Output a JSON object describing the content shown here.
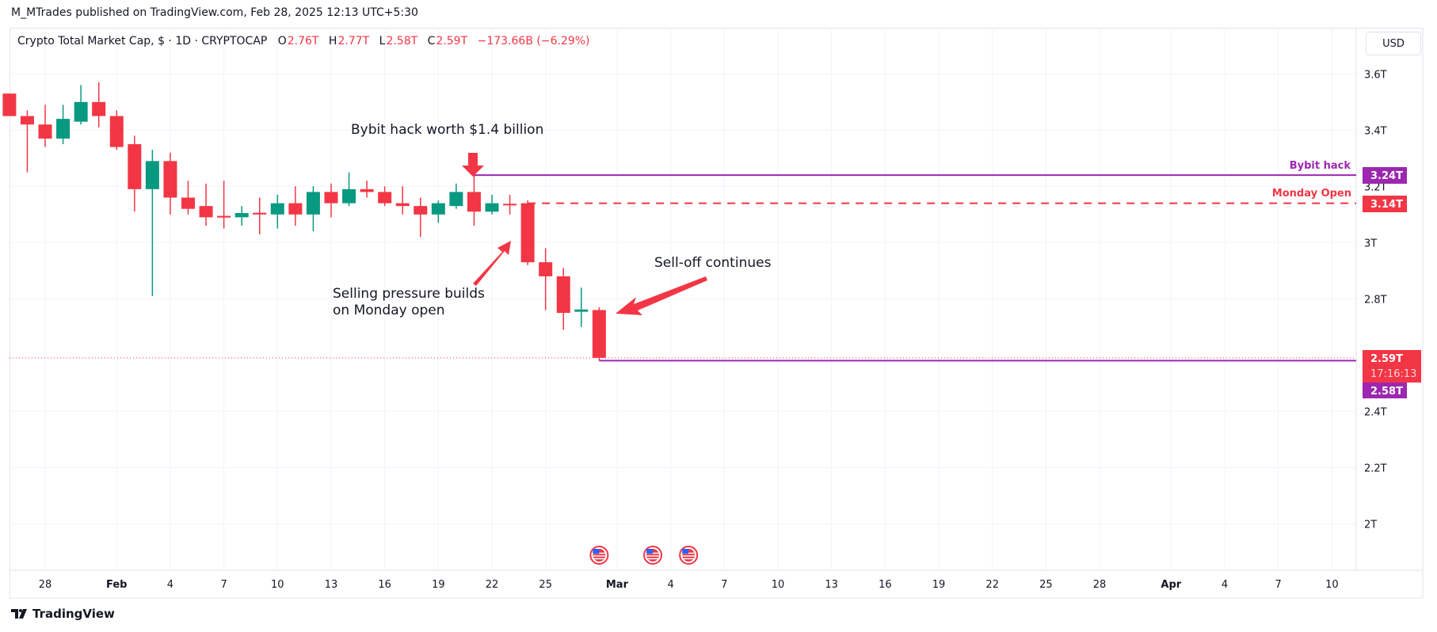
{
  "published": "M_MTrades published on TradingView.com, Feb 28, 2025 12:13 UTC+5:30",
  "legend": {
    "symbol": "Crypto Total Market Cap, $ · 1D · CRYPTOCAP",
    "o_key": "O",
    "o_val": "2.76T",
    "h_key": "H",
    "h_val": "2.77T",
    "l_key": "L",
    "l_val": "2.58T",
    "c_key": "C",
    "c_val": "2.59T",
    "change": "−173.66B (−6.29%)"
  },
  "currency_button": "USD",
  "brand": "TradingView",
  "colors": {
    "up": "#089981",
    "down": "#F23645",
    "purple": "#9C27B0",
    "grid": "#f0f3fa"
  },
  "annotations": {
    "bybit_title": "Bybit hack worth $1.4 billion",
    "selling_line1": "Selling pressure builds",
    "selling_line2": "on Monday open",
    "selloff": "Sell-off continues",
    "bybit_line_label": "Bybit hack",
    "monday_line_label": "Monday Open"
  },
  "price_labels": {
    "bybit": "3.24T",
    "monday": "3.14T",
    "last": "2.59T",
    "countdown": "17:16:13",
    "low": "2.58T"
  },
  "chart_data": {
    "type": "candlestick",
    "interval": "1D",
    "y_ticks": [
      {
        "value": 3.6,
        "label": "3.6T"
      },
      {
        "value": 3.4,
        "label": "3.4T"
      },
      {
        "value": 3.2,
        "label": "3.2T"
      },
      {
        "value": 3.0,
        "label": "3T"
      },
      {
        "value": 2.8,
        "label": "2.8T"
      },
      {
        "value": 2.4,
        "label": "2.4T"
      },
      {
        "value": 2.2,
        "label": "2.2T"
      },
      {
        "value": 2.0,
        "label": "2T"
      }
    ],
    "x_ticks": [
      {
        "date": "2025-01-28",
        "label": "28"
      },
      {
        "date": "2025-02-01",
        "label": "Feb"
      },
      {
        "date": "2025-02-04",
        "label": "4"
      },
      {
        "date": "2025-02-07",
        "label": "7"
      },
      {
        "date": "2025-02-10",
        "label": "10"
      },
      {
        "date": "2025-02-13",
        "label": "13"
      },
      {
        "date": "2025-02-16",
        "label": "16"
      },
      {
        "date": "2025-02-19",
        "label": "19"
      },
      {
        "date": "2025-02-22",
        "label": "22"
      },
      {
        "date": "2025-02-25",
        "label": "25"
      },
      {
        "date": "2025-03-01",
        "label": "Mar"
      },
      {
        "date": "2025-03-04",
        "label": "4"
      },
      {
        "date": "2025-03-07",
        "label": "7"
      },
      {
        "date": "2025-03-10",
        "label": "10"
      },
      {
        "date": "2025-03-13",
        "label": "13"
      },
      {
        "date": "2025-03-16",
        "label": "16"
      },
      {
        "date": "2025-03-19",
        "label": "19"
      },
      {
        "date": "2025-03-22",
        "label": "22"
      },
      {
        "date": "2025-03-25",
        "label": "25"
      },
      {
        "date": "2025-03-28",
        "label": "28"
      },
      {
        "date": "2025-04-01",
        "label": "Apr"
      },
      {
        "date": "2025-04-04",
        "label": "4"
      },
      {
        "date": "2025-04-07",
        "label": "7"
      },
      {
        "date": "2025-04-10",
        "label": "10"
      }
    ],
    "events": [
      "2025-02-28",
      "2025-03-03",
      "2025-03-05"
    ],
    "horizontal_lines": [
      {
        "name": "Bybit hack",
        "value": 3.24,
        "style": "solid",
        "color": "#9C27B0",
        "from": "2025-02-21"
      },
      {
        "name": "Monday Open",
        "value": 3.14,
        "style": "dashed",
        "color": "#F23645",
        "from": "2025-02-24"
      },
      {
        "value": 2.58,
        "style": "solid",
        "color": "#9C27B0",
        "from": "2025-02-28"
      }
    ],
    "last_price": 2.59,
    "candles": [
      {
        "date": "2025-01-26",
        "o": 3.53,
        "h": 3.53,
        "l": 3.45,
        "c": 3.45
      },
      {
        "date": "2025-01-27",
        "o": 3.45,
        "h": 3.47,
        "l": 3.25,
        "c": 3.42
      },
      {
        "date": "2025-01-28",
        "o": 3.42,
        "h": 3.49,
        "l": 3.34,
        "c": 3.37
      },
      {
        "date": "2025-01-29",
        "o": 3.37,
        "h": 3.49,
        "l": 3.35,
        "c": 3.44
      },
      {
        "date": "2025-01-30",
        "o": 3.43,
        "h": 3.56,
        "l": 3.42,
        "c": 3.5
      },
      {
        "date": "2025-01-31",
        "o": 3.5,
        "h": 3.57,
        "l": 3.41,
        "c": 3.45
      },
      {
        "date": "2025-02-01",
        "o": 3.45,
        "h": 3.47,
        "l": 3.33,
        "c": 3.34
      },
      {
        "date": "2025-02-02",
        "o": 3.35,
        "h": 3.38,
        "l": 3.11,
        "c": 3.19
      },
      {
        "date": "2025-02-03",
        "o": 3.19,
        "h": 3.33,
        "l": 2.81,
        "c": 3.29
      },
      {
        "date": "2025-02-04",
        "o": 3.29,
        "h": 3.32,
        "l": 3.1,
        "c": 3.16
      },
      {
        "date": "2025-02-05",
        "o": 3.16,
        "h": 3.22,
        "l": 3.1,
        "c": 3.12
      },
      {
        "date": "2025-02-06",
        "o": 3.13,
        "h": 3.21,
        "l": 3.06,
        "c": 3.09
      },
      {
        "date": "2025-02-07",
        "o": 3.095,
        "h": 3.22,
        "l": 3.05,
        "c": 3.089
      },
      {
        "date": "2025-02-08",
        "o": 3.09,
        "h": 3.13,
        "l": 3.06,
        "c": 3.105
      },
      {
        "date": "2025-02-09",
        "o": 3.106,
        "h": 3.16,
        "l": 3.03,
        "c": 3.1
      },
      {
        "date": "2025-02-10",
        "o": 3.1,
        "h": 3.17,
        "l": 3.05,
        "c": 3.14
      },
      {
        "date": "2025-02-11",
        "o": 3.14,
        "h": 3.2,
        "l": 3.06,
        "c": 3.1
      },
      {
        "date": "2025-02-12",
        "o": 3.1,
        "h": 3.2,
        "l": 3.04,
        "c": 3.18
      },
      {
        "date": "2025-02-13",
        "o": 3.18,
        "h": 3.21,
        "l": 3.09,
        "c": 3.14
      },
      {
        "date": "2025-02-14",
        "o": 3.14,
        "h": 3.25,
        "l": 3.13,
        "c": 3.19
      },
      {
        "date": "2025-02-15",
        "o": 3.19,
        "h": 3.22,
        "l": 3.16,
        "c": 3.18
      },
      {
        "date": "2025-02-16",
        "o": 3.18,
        "h": 3.2,
        "l": 3.13,
        "c": 3.14
      },
      {
        "date": "2025-02-17",
        "o": 3.14,
        "h": 3.2,
        "l": 3.1,
        "c": 3.13
      },
      {
        "date": "2025-02-18",
        "o": 3.13,
        "h": 3.16,
        "l": 3.02,
        "c": 3.1
      },
      {
        "date": "2025-02-19",
        "o": 3.1,
        "h": 3.15,
        "l": 3.07,
        "c": 3.14
      },
      {
        "date": "2025-02-20",
        "o": 3.13,
        "h": 3.21,
        "l": 3.12,
        "c": 3.18
      },
      {
        "date": "2025-02-21",
        "o": 3.18,
        "h": 3.24,
        "l": 3.06,
        "c": 3.11
      },
      {
        "date": "2025-02-22",
        "o": 3.11,
        "h": 3.17,
        "l": 3.1,
        "c": 3.14
      },
      {
        "date": "2025-02-23",
        "o": 3.138,
        "h": 3.17,
        "l": 3.1,
        "c": 3.137
      },
      {
        "date": "2025-02-24",
        "o": 3.14,
        "h": 3.15,
        "l": 2.92,
        "c": 2.93
      },
      {
        "date": "2025-02-25",
        "o": 2.93,
        "h": 2.98,
        "l": 2.76,
        "c": 2.88
      },
      {
        "date": "2025-02-26",
        "o": 2.88,
        "h": 2.91,
        "l": 2.69,
        "c": 2.75
      },
      {
        "date": "2025-02-27",
        "o": 2.754,
        "h": 2.84,
        "l": 2.7,
        "c": 2.762
      },
      {
        "date": "2025-02-28",
        "o": 2.76,
        "h": 2.77,
        "l": 2.58,
        "c": 2.59
      }
    ]
  }
}
